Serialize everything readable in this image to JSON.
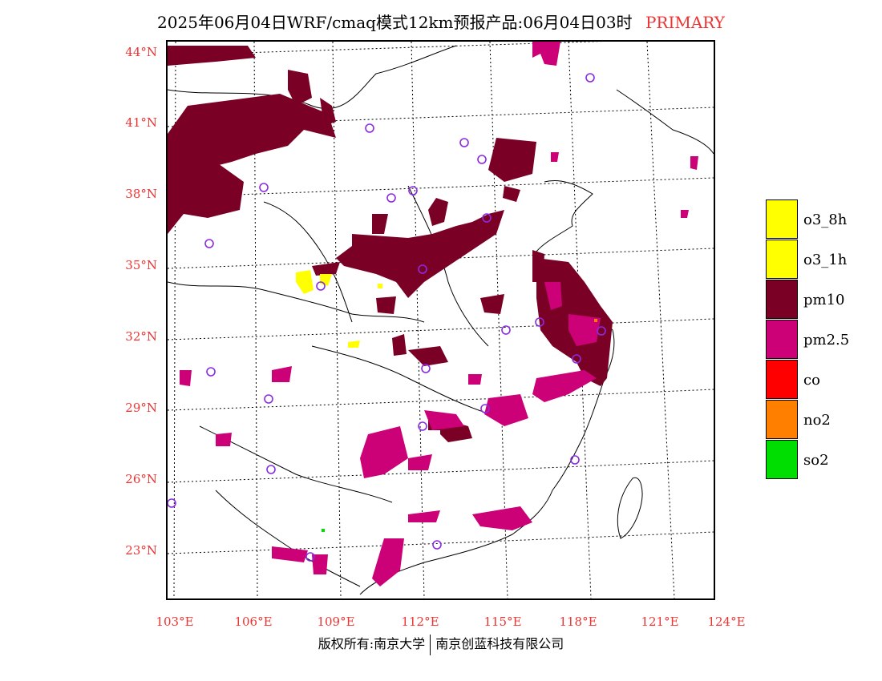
{
  "header": {
    "title": "2025年06月04日WRF/cmaq模式12km预报产品:06月04日03时",
    "mode": "PRIMARY"
  },
  "map": {
    "lat_labels": [
      "44°N",
      "41°N",
      "38°N",
      "35°N",
      "32°N",
      "29°N",
      "26°N",
      "23°N"
    ],
    "lon_labels": [
      "103°E",
      "106°E",
      "109°E",
      "112°E",
      "115°E",
      "118°E",
      "121°E",
      "124°E"
    ]
  },
  "legend": {
    "items": [
      {
        "label": "o3_8h",
        "color": "#ffff00"
      },
      {
        "label": "o3_1h",
        "color": "#ffff00"
      },
      {
        "label": "pm10",
        "color": "#7a0026"
      },
      {
        "label": "pm2.5",
        "color": "#cc0077"
      },
      {
        "label": "co",
        "color": "#ff0000"
      },
      {
        "label": "no2",
        "color": "#ff7f00"
      },
      {
        "label": "so2",
        "color": "#00dd00"
      }
    ]
  },
  "footer": {
    "left": "版权所有:南京大学",
    "right": "南京创蓝科技有限公司"
  }
}
